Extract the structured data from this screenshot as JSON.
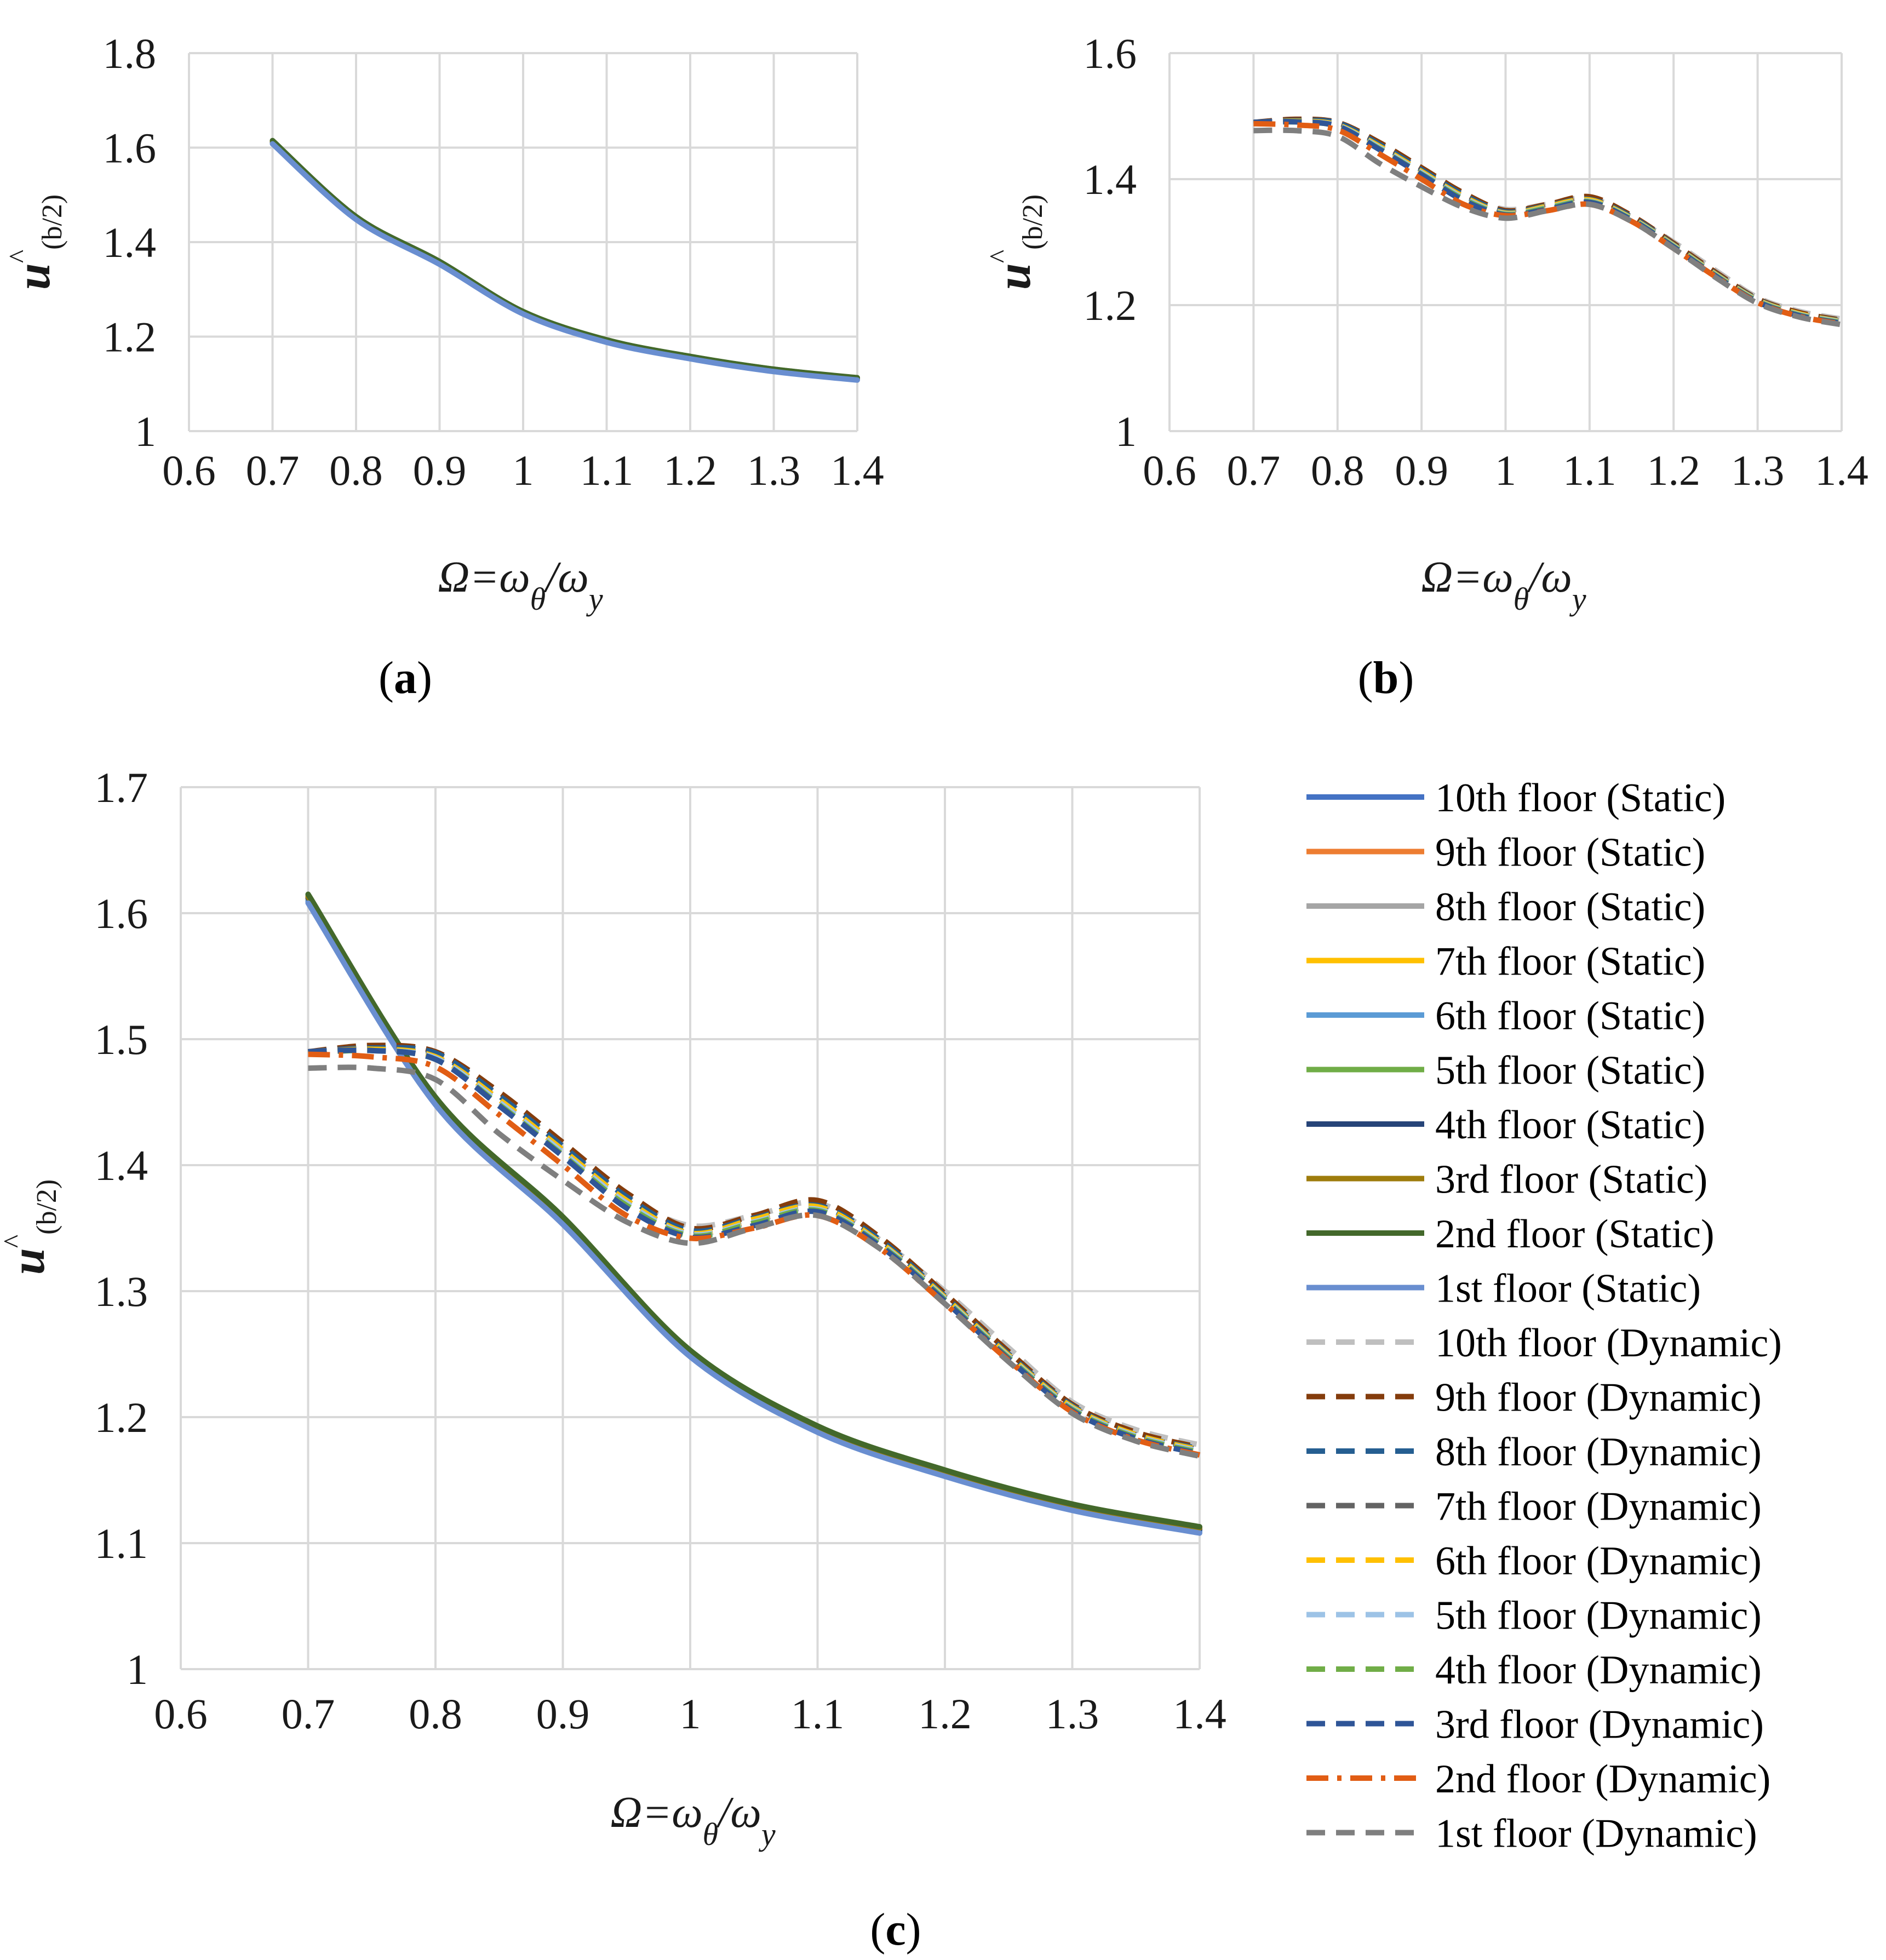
{
  "chart_data": [
    {
      "id": "a",
      "panel_label": "a",
      "type": "line",
      "xlabel": {
        "omega": "Ω",
        "eq": "=ω",
        "sub1": "θ",
        "slash": "/ω",
        "sub2": "y"
      },
      "ylabel": {
        "u": "u",
        "hat": "^",
        "sub": "(b/2)"
      },
      "xlim": [
        0.6,
        1.4
      ],
      "ylim": [
        1.0,
        1.8
      ],
      "xticks": [
        "0.6",
        "0.7",
        "0.8",
        "0.9",
        "1",
        "1.1",
        "1.2",
        "1.3",
        "1.4"
      ],
      "yticks": [
        "1",
        "1.2",
        "1.4",
        "1.6",
        "1.8"
      ],
      "grid": true,
      "x": [
        0.7,
        0.8,
        0.9,
        1.0,
        1.1,
        1.2,
        1.3,
        1.4
      ],
      "series": [
        {
          "color": "#4472C4",
          "dash": "solid",
          "values": [
            1.61,
            1.45,
            1.355,
            1.25,
            1.19,
            1.155,
            1.128,
            1.11
          ]
        },
        {
          "color": "#ED7D31",
          "dash": "solid",
          "values": [
            1.612,
            1.452,
            1.357,
            1.252,
            1.192,
            1.157,
            1.13,
            1.112
          ]
        },
        {
          "color": "#A5A5A5",
          "dash": "solid",
          "values": [
            1.611,
            1.451,
            1.356,
            1.251,
            1.191,
            1.156,
            1.129,
            1.111
          ]
        },
        {
          "color": "#FFC000",
          "dash": "solid",
          "values": [
            1.613,
            1.452,
            1.357,
            1.252,
            1.192,
            1.157,
            1.13,
            1.112
          ]
        },
        {
          "color": "#5B9BD5",
          "dash": "solid",
          "values": [
            1.609,
            1.449,
            1.354,
            1.249,
            1.189,
            1.154,
            1.127,
            1.109
          ]
        },
        {
          "color": "#70AD47",
          "dash": "solid",
          "values": [
            1.614,
            1.453,
            1.358,
            1.253,
            1.193,
            1.158,
            1.131,
            1.112
          ]
        },
        {
          "color": "#264478",
          "dash": "solid",
          "values": [
            1.612,
            1.451,
            1.356,
            1.251,
            1.191,
            1.156,
            1.129,
            1.111
          ]
        },
        {
          "color": "#9E7C0C",
          "dash": "solid",
          "values": [
            1.613,
            1.452,
            1.357,
            1.252,
            1.192,
            1.157,
            1.13,
            1.112
          ]
        },
        {
          "color": "#43682B",
          "dash": "solid",
          "values": [
            1.615,
            1.454,
            1.359,
            1.253,
            1.193,
            1.158,
            1.131,
            1.113
          ]
        },
        {
          "color": "#698ED0",
          "dash": "solid",
          "values": [
            1.608,
            1.448,
            1.353,
            1.248,
            1.188,
            1.153,
            1.126,
            1.108
          ]
        }
      ]
    },
    {
      "id": "b",
      "panel_label": "b",
      "type": "line",
      "xlabel": {
        "omega": "Ω",
        "eq": "=ω",
        "sub1": "θ",
        "slash": "/ω",
        "sub2": "y"
      },
      "ylabel": {
        "u": "u",
        "hat": "^",
        "sub": "(b/2)"
      },
      "xlim": [
        0.6,
        1.4
      ],
      "ylim": [
        1.0,
        1.6
      ],
      "xticks": [
        "0.6",
        "0.7",
        "0.8",
        "0.9",
        "1",
        "1.1",
        "1.2",
        "1.3",
        "1.4"
      ],
      "yticks": [
        "1",
        "1.2",
        "1.4",
        "1.6"
      ],
      "grid": true,
      "x": [
        0.7,
        0.75,
        0.8,
        0.85,
        0.9,
        0.95,
        1.0,
        1.05,
        1.1,
        1.15,
        1.2,
        1.25,
        1.3,
        1.35,
        1.4
      ],
      "series": [
        {
          "color": "#BFBFBF",
          "dash": "dash",
          "values": [
            1.488,
            1.492,
            1.488,
            1.455,
            1.415,
            1.375,
            1.352,
            1.36,
            1.37,
            1.34,
            1.3,
            1.255,
            1.212,
            1.19,
            1.178
          ]
        },
        {
          "color": "#843C0C",
          "dash": "dash",
          "values": [
            1.49,
            1.495,
            1.49,
            1.458,
            1.418,
            1.378,
            1.35,
            1.36,
            1.372,
            1.342,
            1.298,
            1.252,
            1.21,
            1.188,
            1.176
          ]
        },
        {
          "color": "#255E91",
          "dash": "dash",
          "values": [
            1.49,
            1.493,
            1.489,
            1.455,
            1.415,
            1.375,
            1.348,
            1.358,
            1.368,
            1.34,
            1.296,
            1.25,
            1.209,
            1.186,
            1.175
          ]
        },
        {
          "color": "#636363",
          "dash": "dash",
          "values": [
            1.49,
            1.492,
            1.486,
            1.452,
            1.412,
            1.372,
            1.346,
            1.356,
            1.366,
            1.338,
            1.295,
            1.249,
            1.208,
            1.186,
            1.174
          ]
        },
        {
          "color": "#FFC000",
          "dash": "dash",
          "values": [
            1.489,
            1.492,
            1.486,
            1.452,
            1.412,
            1.372,
            1.346,
            1.357,
            1.367,
            1.338,
            1.295,
            1.249,
            1.208,
            1.186,
            1.174
          ]
        },
        {
          "color": "#9DC3E6",
          "dash": "dash",
          "values": [
            1.489,
            1.491,
            1.485,
            1.45,
            1.41,
            1.37,
            1.345,
            1.355,
            1.365,
            1.337,
            1.294,
            1.248,
            1.207,
            1.185,
            1.173
          ]
        },
        {
          "color": "#70AD47",
          "dash": "dash",
          "values": [
            1.489,
            1.491,
            1.484,
            1.448,
            1.408,
            1.368,
            1.344,
            1.354,
            1.364,
            1.336,
            1.293,
            1.247,
            1.206,
            1.184,
            1.172
          ]
        },
        {
          "color": "#2F5597",
          "dash": "dash",
          "values": [
            1.49,
            1.491,
            1.484,
            1.447,
            1.407,
            1.366,
            1.343,
            1.352,
            1.363,
            1.335,
            1.292,
            1.246,
            1.205,
            1.183,
            1.171
          ]
        },
        {
          "color": "#E15D14",
          "dash": "dashdot",
          "values": [
            1.488,
            1.486,
            1.478,
            1.44,
            1.4,
            1.36,
            1.342,
            1.35,
            1.36,
            1.333,
            1.29,
            1.245,
            1.204,
            1.182,
            1.17
          ]
        },
        {
          "color": "#7F7F7F",
          "dash": "dash",
          "values": [
            1.477,
            1.477,
            1.468,
            1.425,
            1.388,
            1.355,
            1.338,
            1.35,
            1.36,
            1.333,
            1.29,
            1.244,
            1.203,
            1.181,
            1.169
          ]
        }
      ]
    },
    {
      "id": "c",
      "panel_label": "c",
      "type": "line",
      "xlabel": {
        "omega": "Ω",
        "eq": "=ω",
        "sub1": "θ",
        "slash": "/ω",
        "sub2": "y"
      },
      "ylabel": {
        "u": "u",
        "hat": "^",
        "sub": "(b/2)"
      },
      "xlim": [
        0.6,
        1.4
      ],
      "ylim": [
        1.0,
        1.7
      ],
      "xticks": [
        "0.6",
        "0.7",
        "0.8",
        "0.9",
        "1",
        "1.1",
        "1.2",
        "1.3",
        "1.4"
      ],
      "yticks": [
        "1",
        "1.1",
        "1.2",
        "1.3",
        "1.4",
        "1.5",
        "1.6",
        "1.7"
      ],
      "grid": true,
      "legend_position": "right",
      "series_refs": [
        "a",
        "b"
      ]
    }
  ],
  "legend": {
    "entries": [
      {
        "label": "10th floor (Static)",
        "color": "#4472C4",
        "dash": "solid"
      },
      {
        "label": "9th floor (Static)",
        "color": "#ED7D31",
        "dash": "solid"
      },
      {
        "label": "8th floor (Static)",
        "color": "#A5A5A5",
        "dash": "solid"
      },
      {
        "label": "7th floor (Static)",
        "color": "#FFC000",
        "dash": "solid"
      },
      {
        "label": "6th floor (Static)",
        "color": "#5B9BD5",
        "dash": "solid"
      },
      {
        "label": "5th floor (Static)",
        "color": "#70AD47",
        "dash": "solid"
      },
      {
        "label": "4th floor (Static)",
        "color": "#264478",
        "dash": "solid"
      },
      {
        "label": "3rd floor (Static)",
        "color": "#9E7C0C",
        "dash": "solid"
      },
      {
        "label": "2nd floor (Static)",
        "color": "#43682B",
        "dash": "solid"
      },
      {
        "label": "1st floor (Static)",
        "color": "#698ED0",
        "dash": "solid"
      },
      {
        "label": "10th floor (Dynamic)",
        "color": "#BFBFBF",
        "dash": "dash"
      },
      {
        "label": "9th floor (Dynamic)",
        "color": "#843C0C",
        "dash": "dash"
      },
      {
        "label": "8th floor (Dynamic)",
        "color": "#255E91",
        "dash": "dash"
      },
      {
        "label": "7th floor (Dynamic)",
        "color": "#636363",
        "dash": "dash"
      },
      {
        "label": "6th floor (Dynamic)",
        "color": "#FFC000",
        "dash": "dash"
      },
      {
        "label": "5th floor (Dynamic)",
        "color": "#9DC3E6",
        "dash": "dash"
      },
      {
        "label": "4th floor (Dynamic)",
        "color": "#70AD47",
        "dash": "dash"
      },
      {
        "label": "3rd floor (Dynamic)",
        "color": "#2F5597",
        "dash": "dash"
      },
      {
        "label": "2nd floor (Dynamic)",
        "color": "#E15D14",
        "dash": "dashdot"
      },
      {
        "label": "1st floor (Dynamic)",
        "color": "#7F7F7F",
        "dash": "dash"
      }
    ]
  },
  "colors": {
    "grid": "#D9D9D9",
    "axis": "#BFBFBF",
    "text": "#1a1a1a"
  }
}
